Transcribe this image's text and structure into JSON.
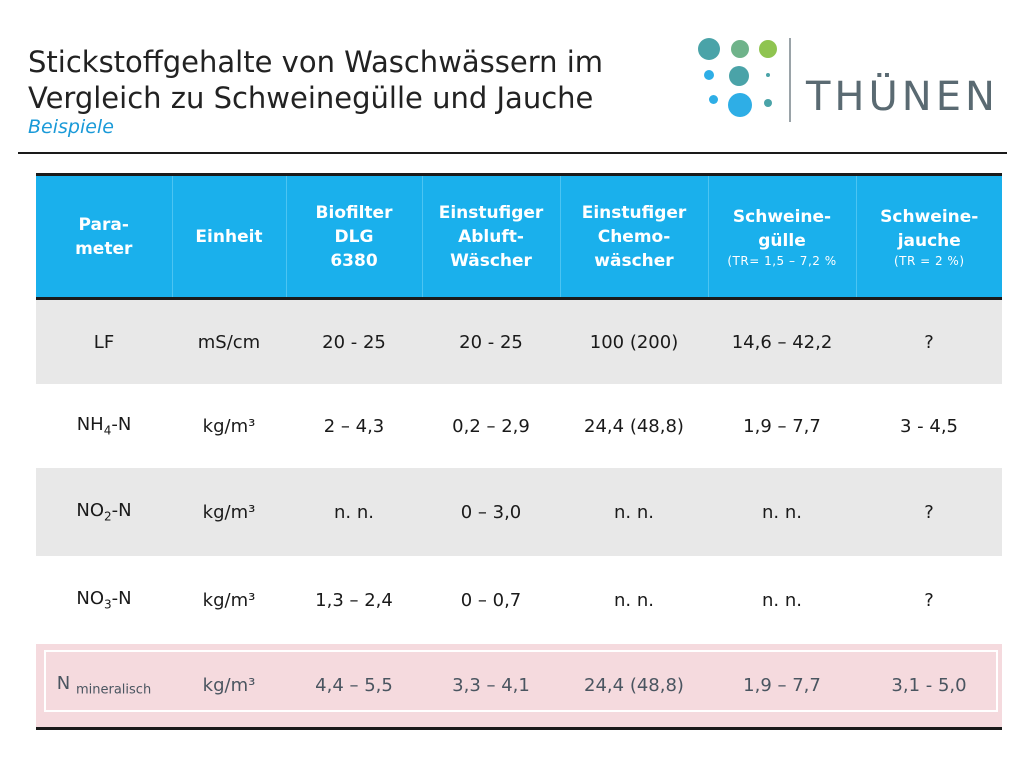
{
  "slide": {
    "title_line1": "Stickstoffgehalte von Waschwässern im",
    "title_line2": "Vergleich zu Schweinegülle und Jauche",
    "subtitle": "Beispiele"
  },
  "logo": {
    "wordmark": "THÜNEN",
    "colors": {
      "teal": "#4aa3a8",
      "green": "#8fc450",
      "blue": "#2eaee6",
      "gray": "#5a6a72"
    }
  },
  "table": {
    "header": {
      "param": [
        "Para-",
        "meter"
      ],
      "unit": "Einheit",
      "biofilter": [
        "Biofilter",
        "DLG",
        "6380"
      ],
      "einstufig_abluft": [
        "Einstufiger",
        "Abluft-",
        "Wäscher"
      ],
      "einstufig_chemo": [
        "Einstufiger",
        "Chemo-",
        "wäscher"
      ],
      "guelle": [
        "Schweine-",
        "gülle"
      ],
      "guelle_note": "(TR= 1,5 – 7,2 %",
      "jauche": [
        "Schweine-",
        "jauche"
      ],
      "jauche_note": "(TR = 2 %)"
    },
    "rows": [
      {
        "param": "LF",
        "param_sub": "",
        "param_suffix": "",
        "unit": "mS/cm",
        "values": [
          "20 - 25",
          "20 - 25",
          "100 (200)",
          "14,6 – 42,2",
          "?"
        ]
      },
      {
        "param": "NH",
        "param_sub": "4",
        "param_suffix": "-N",
        "unit": "kg/m³",
        "values": [
          "2 – 4,3",
          "0,2 – 2,9",
          "24,4 (48,8)",
          "1,9 – 7,7",
          "3 - 4,5"
        ]
      },
      {
        "param": "NO",
        "param_sub": "2",
        "param_suffix": "-N",
        "unit": "kg/m³",
        "values": [
          "n. n.",
          "0 – 3,0",
          "n. n.",
          "n. n.",
          "?"
        ]
      },
      {
        "param": "NO",
        "param_sub": "3",
        "param_suffix": "-N",
        "unit": "kg/m³",
        "values": [
          "1,3 – 2,4",
          "0 – 0,7",
          "n. n.",
          "n. n.",
          "?"
        ]
      },
      {
        "param": "N",
        "param_sub": "mineralisch",
        "param_suffix": "",
        "unit": "kg/m³",
        "values": [
          "4,4 – 5,5",
          "3,3 – 4,1",
          "24,4 (48,8)",
          "1,9 – 7,7",
          "3,1 - 5,0"
        ]
      }
    ]
  },
  "colors": {
    "header_bg": "#1ab0ec",
    "row_gray": "#e8e8e8",
    "highlight_row": "#f5dade",
    "subtitle": "#1a9ad8"
  }
}
